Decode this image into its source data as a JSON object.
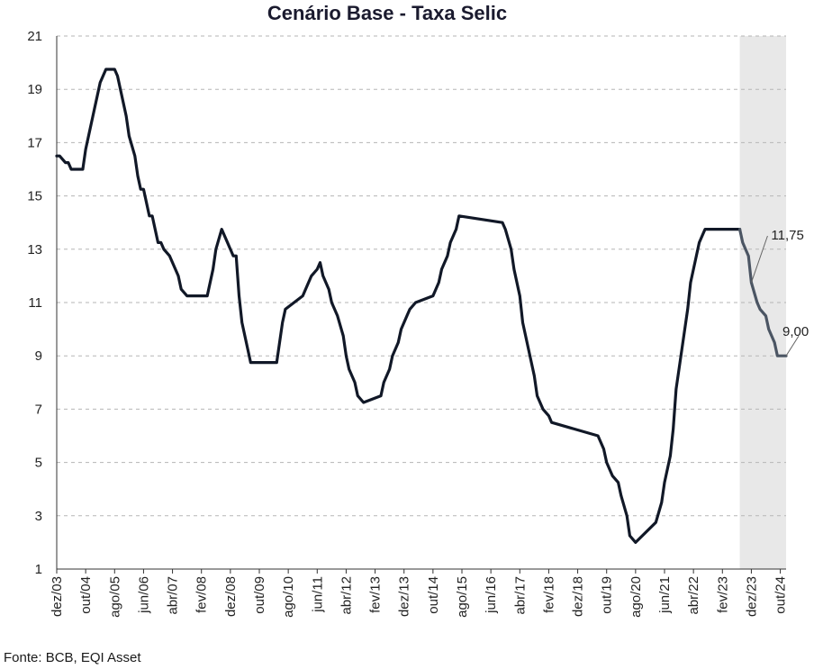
{
  "chart_data": {
    "type": "line",
    "title": "Cenário Base - Taxa Selic",
    "source": "Fonte: BCB, EQI Asset",
    "xlabel": "",
    "ylabel": "",
    "ylim": [
      1,
      21
    ],
    "yticks": [
      1,
      3,
      5,
      7,
      9,
      11,
      13,
      15,
      17,
      19,
      21
    ],
    "x_range": [
      "2003-12",
      "2024-12"
    ],
    "xtick_labels": [
      "dez/03",
      "out/04",
      "ago/05",
      "jun/06",
      "abr/07",
      "fev/08",
      "dez/08",
      "out/09",
      "ago/10",
      "jun/11",
      "abr/12",
      "fev/13",
      "dez/13",
      "out/14",
      "ago/15",
      "jun/16",
      "abr/17",
      "fev/18",
      "dez/18",
      "out/19",
      "ago/20",
      "jun/21",
      "abr/22",
      "fev/23",
      "dez/23",
      "out/24"
    ],
    "xtick_dates": [
      "2003-12",
      "2004-10",
      "2005-08",
      "2006-06",
      "2007-04",
      "2008-02",
      "2008-12",
      "2009-10",
      "2010-08",
      "2011-06",
      "2012-04",
      "2013-02",
      "2013-12",
      "2014-10",
      "2015-08",
      "2016-06",
      "2017-04",
      "2018-02",
      "2018-12",
      "2019-10",
      "2020-08",
      "2021-06",
      "2022-04",
      "2023-02",
      "2023-12",
      "2024-10"
    ],
    "grid": true,
    "shaded_region": {
      "from": "2023-08",
      "to": "2024-12",
      "color": "#e8e8e8"
    },
    "annotations": [
      {
        "text": "11,75",
        "x": "2023-12",
        "y": 11.75
      },
      {
        "text": "9,00",
        "x": "2024-12",
        "y": 9.0
      }
    ],
    "colors": {
      "historical": "#111827",
      "forecast": "#4b5563",
      "grid": "#b5b5b5"
    },
    "series": [
      {
        "role": "historical",
        "x": [
          "2003-12",
          "2004-01",
          "2004-03",
          "2004-04",
          "2004-05",
          "2004-09",
          "2004-10",
          "2004-11",
          "2004-12",
          "2005-01",
          "2005-02",
          "2005-03",
          "2005-04",
          "2005-05",
          "2005-08",
          "2005-09",
          "2005-10",
          "2005-11",
          "2005-12",
          "2006-01",
          "2006-03",
          "2006-04",
          "2006-05",
          "2006-06",
          "2006-07",
          "2006-08",
          "2006-09",
          "2006-10",
          "2006-11",
          "2006-12",
          "2007-01",
          "2007-03",
          "2007-04",
          "2007-06",
          "2007-07",
          "2007-09",
          "2008-04",
          "2008-06",
          "2008-07",
          "2008-09",
          "2009-01",
          "2009-02",
          "2009-03",
          "2009-04",
          "2009-06",
          "2009-07",
          "2010-04",
          "2010-06",
          "2010-07",
          "2011-01",
          "2011-03",
          "2011-04",
          "2011-06",
          "2011-07",
          "2011-08",
          "2011-10",
          "2011-11",
          "2012-01",
          "2012-03",
          "2012-04",
          "2012-05",
          "2012-07",
          "2012-08",
          "2012-10",
          "2013-04",
          "2013-05",
          "2013-07",
          "2013-08",
          "2013-10",
          "2013-11",
          "2014-01",
          "2014-02",
          "2014-04",
          "2014-10",
          "2014-12",
          "2015-01",
          "2015-03",
          "2015-04",
          "2015-06",
          "2015-07",
          "2016-10",
          "2016-11",
          "2017-01",
          "2017-02",
          "2017-04",
          "2017-05",
          "2017-07",
          "2017-09",
          "2017-10",
          "2017-12",
          "2018-02",
          "2018-03",
          "2019-07",
          "2019-09",
          "2019-10",
          "2019-12",
          "2020-02",
          "2020-03",
          "2020-05",
          "2020-06",
          "2020-08",
          "2021-03",
          "2021-05",
          "2021-06",
          "2021-08",
          "2021-09",
          "2021-10",
          "2021-12",
          "2022-02",
          "2022-03",
          "2022-05",
          "2022-06",
          "2022-08",
          "2023-08"
        ],
        "y": [
          16.5,
          16.5,
          16.25,
          16.25,
          16.0,
          16.0,
          16.75,
          17.25,
          17.75,
          18.25,
          18.75,
          19.25,
          19.5,
          19.75,
          19.75,
          19.5,
          19.0,
          18.5,
          18.0,
          17.25,
          16.5,
          15.75,
          15.25,
          15.25,
          14.75,
          14.25,
          14.25,
          13.75,
          13.25,
          13.25,
          13.0,
          12.75,
          12.5,
          12.0,
          11.5,
          11.25,
          11.25,
          12.25,
          13.0,
          13.75,
          12.75,
          12.75,
          11.25,
          10.25,
          9.25,
          8.75,
          8.75,
          10.25,
          10.75,
          11.25,
          11.75,
          12.0,
          12.25,
          12.5,
          12.0,
          11.5,
          11.0,
          10.5,
          9.75,
          9.0,
          8.5,
          8.0,
          7.5,
          7.25,
          7.5,
          8.0,
          8.5,
          9.0,
          9.5,
          10.0,
          10.5,
          10.75,
          11.0,
          11.25,
          11.75,
          12.25,
          12.75,
          13.25,
          13.75,
          14.25,
          14.0,
          13.75,
          13.0,
          12.25,
          11.25,
          10.25,
          9.25,
          8.25,
          7.5,
          7.0,
          6.75,
          6.5,
          6.0,
          5.5,
          5.0,
          4.5,
          4.25,
          3.75,
          3.0,
          2.25,
          2.0,
          2.75,
          3.5,
          4.25,
          5.25,
          6.25,
          7.75,
          9.25,
          10.75,
          11.75,
          12.75,
          13.25,
          13.75,
          13.75
        ]
      },
      {
        "role": "forecast",
        "x": [
          "2023-08",
          "2023-09",
          "2023-11",
          "2023-12",
          "2024-02",
          "2024-03",
          "2024-05",
          "2024-06",
          "2024-08",
          "2024-09",
          "2024-12"
        ],
        "y": [
          13.75,
          13.25,
          12.75,
          11.75,
          11.0,
          10.75,
          10.5,
          10.0,
          9.5,
          9.0,
          9.0
        ]
      }
    ]
  }
}
